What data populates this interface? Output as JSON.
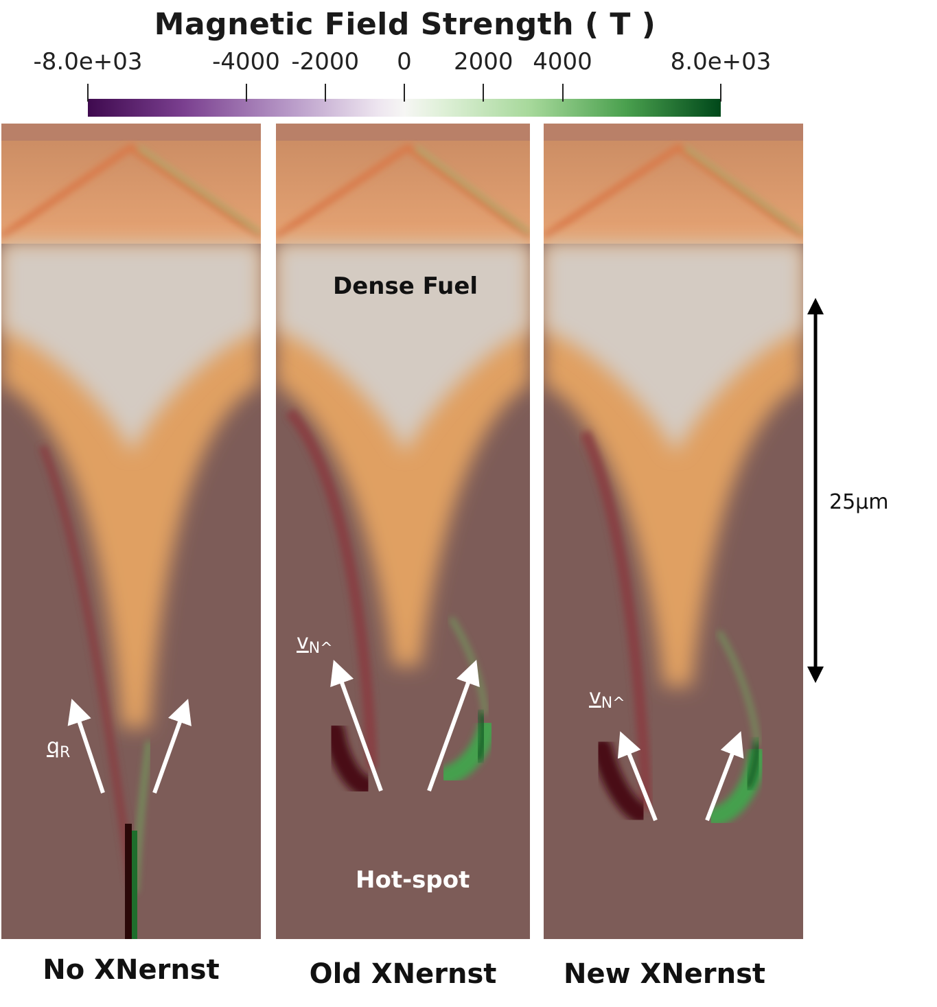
{
  "colorbar": {
    "title": "Magnetic Field Strength ( T )",
    "min": -8000,
    "max": 8000,
    "ticks": [
      {
        "value": -8000,
        "label": "-8.0e+03"
      },
      {
        "value": -4000,
        "label": "-4000"
      },
      {
        "value": -2000,
        "label": "-2000"
      },
      {
        "value": 0,
        "label": "0"
      },
      {
        "value": 2000,
        "label": "2000"
      },
      {
        "value": 4000,
        "label": "4000"
      },
      {
        "value": 8000,
        "label": "8.0e+03"
      }
    ],
    "colors": {
      "negative": "#3f0a4f",
      "zero": "#f6f6f4",
      "positive": "#00481a"
    }
  },
  "panels": [
    {
      "label": "No XNernst"
    },
    {
      "label": "Old XNernst"
    },
    {
      "label": "New XNernst"
    }
  ],
  "annotations": {
    "dense_fuel": "Dense Fuel",
    "hot_spot": "Hot-spot",
    "q_r": {
      "main": "q",
      "sub": "R"
    },
    "v_n_old": {
      "main": "v",
      "sub": "N^"
    },
    "v_n_new": {
      "main": "v",
      "sub": "N^"
    }
  },
  "scale_bar": {
    "label": "25μm"
  },
  "field_colors": {
    "background": "#7d5c58",
    "fuel_core": "#cfc8bf",
    "fuel_orange": "#e0a062",
    "shell_orange": "#e89a5e",
    "negative_field": "#4a0a14",
    "positive_field": "#2d8a3a",
    "arrow": "#ffffff"
  }
}
